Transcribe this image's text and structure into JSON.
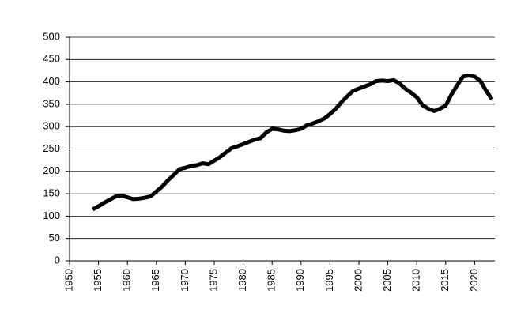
{
  "chart_data": {
    "type": "line",
    "x": [
      1954,
      1955,
      1956,
      1957,
      1958,
      1959,
      1960,
      1961,
      1962,
      1963,
      1964,
      1965,
      1966,
      1967,
      1968,
      1969,
      1970,
      1971,
      1972,
      1973,
      1974,
      1975,
      1976,
      1977,
      1978,
      1979,
      1980,
      1981,
      1982,
      1983,
      1984,
      1985,
      1986,
      1987,
      1988,
      1989,
      1990,
      1991,
      1992,
      1993,
      1994,
      1995,
      1996,
      1997,
      1998,
      1999,
      2000,
      2001,
      2002,
      2003,
      2004,
      2005,
      2006,
      2007,
      2008,
      2009,
      2010,
      2011,
      2012,
      2013,
      2014,
      2015,
      2016,
      2017,
      2018,
      2019,
      2020,
      2021,
      2022,
      2023
    ],
    "values": [
      115,
      122,
      130,
      137,
      144,
      146,
      142,
      138,
      139,
      141,
      144,
      155,
      166,
      180,
      192,
      205,
      208,
      212,
      214,
      218,
      216,
      224,
      232,
      242,
      252,
      256,
      261,
      266,
      271,
      274,
      287,
      295,
      294,
      291,
      290,
      292,
      295,
      303,
      307,
      312,
      318,
      328,
      340,
      355,
      368,
      380,
      385,
      390,
      395,
      402,
      403,
      402,
      404,
      397,
      385,
      376,
      366,
      348,
      340,
      335,
      340,
      347,
      372,
      393,
      412,
      414,
      412,
      402,
      380,
      361
    ],
    "color": "#000000",
    "xlim": [
      1950,
      2023.5
    ],
    "xticks": [
      1950,
      1955,
      1960,
      1965,
      1970,
      1975,
      1980,
      1985,
      1990,
      1995,
      2000,
      2005,
      2010,
      2015,
      2020
    ],
    "ylim": [
      0,
      500
    ],
    "yticks": [
      0,
      50,
      100,
      150,
      200,
      250,
      300,
      350,
      400,
      450,
      500
    ],
    "grid": true
  }
}
